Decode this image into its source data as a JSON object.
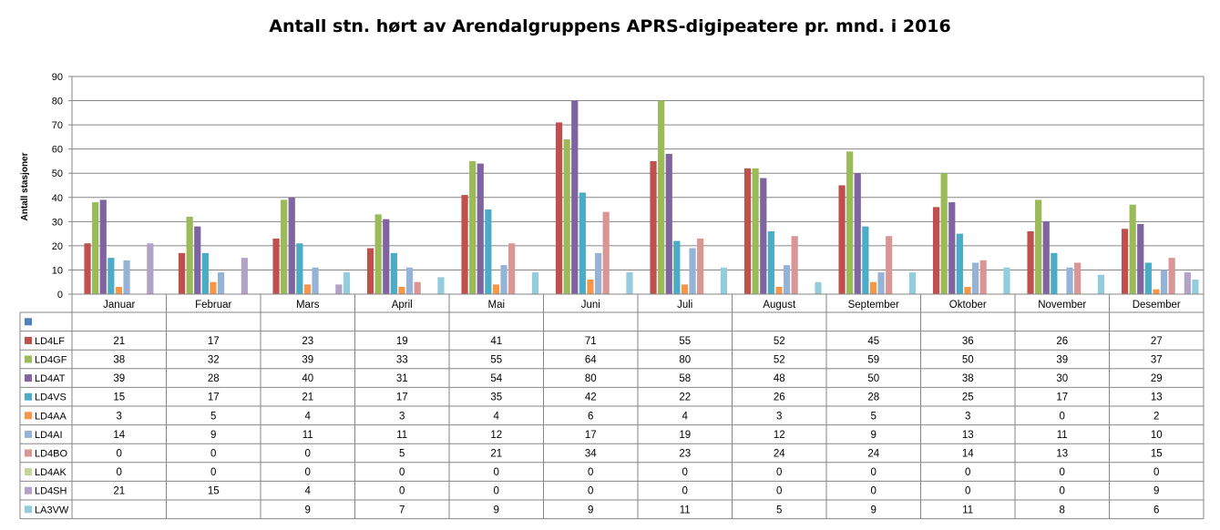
{
  "chart_data": {
    "type": "bar",
    "title": "Antall stn. hørt av Arendalgruppens APRS-digipeatere pr. mnd. i 2016",
    "ylabel": "Antall stasjoner",
    "xlabel": "",
    "ylim": [
      0,
      90
    ],
    "yticks": [
      0,
      10,
      20,
      30,
      40,
      50,
      60,
      70,
      80,
      90
    ],
    "grid": true,
    "legend": "data-table",
    "categories": [
      "Januar",
      "Februar",
      "Mars",
      "April",
      "Mai",
      "Juni",
      "Juli",
      "August",
      "September",
      "Oktober",
      "November",
      "Desember"
    ],
    "blank_series_color": "#4F81BD",
    "series": [
      {
        "name": "LD4LF",
        "color": "#C0504D",
        "values": [
          21,
          17,
          23,
          19,
          41,
          71,
          55,
          52,
          45,
          36,
          26,
          27
        ]
      },
      {
        "name": "LD4GF",
        "color": "#9BBB59",
        "values": [
          38,
          32,
          39,
          33,
          55,
          64,
          80,
          52,
          59,
          50,
          39,
          37
        ]
      },
      {
        "name": "LD4AT",
        "color": "#8064A2",
        "values": [
          39,
          28,
          40,
          31,
          54,
          80,
          58,
          48,
          50,
          38,
          30,
          29
        ]
      },
      {
        "name": "LD4VS",
        "color": "#4BACC6",
        "values": [
          15,
          17,
          21,
          17,
          35,
          42,
          22,
          26,
          28,
          25,
          17,
          13
        ]
      },
      {
        "name": "LD4AA",
        "color": "#F79646",
        "values": [
          3,
          5,
          4,
          3,
          4,
          6,
          4,
          3,
          5,
          3,
          0,
          2
        ]
      },
      {
        "name": "LD4AI",
        "color": "#95B3D7",
        "values": [
          14,
          9,
          11,
          11,
          12,
          17,
          19,
          12,
          9,
          13,
          11,
          10
        ]
      },
      {
        "name": "LD4BO",
        "color": "#D99694",
        "values": [
          0,
          0,
          0,
          5,
          21,
          34,
          23,
          24,
          24,
          14,
          13,
          15
        ]
      },
      {
        "name": "LD4AK",
        "color": "#C3D69B",
        "values": [
          0,
          0,
          0,
          0,
          0,
          0,
          0,
          0,
          0,
          0,
          0,
          0
        ]
      },
      {
        "name": "LD4SH",
        "color": "#B3A2C7",
        "values": [
          21,
          15,
          4,
          0,
          0,
          0,
          0,
          0,
          0,
          0,
          0,
          9
        ]
      },
      {
        "name": "LA3VW",
        "color": "#93CDDD",
        "values": [
          null,
          null,
          9,
          7,
          9,
          9,
          11,
          5,
          9,
          11,
          8,
          6
        ]
      }
    ]
  }
}
